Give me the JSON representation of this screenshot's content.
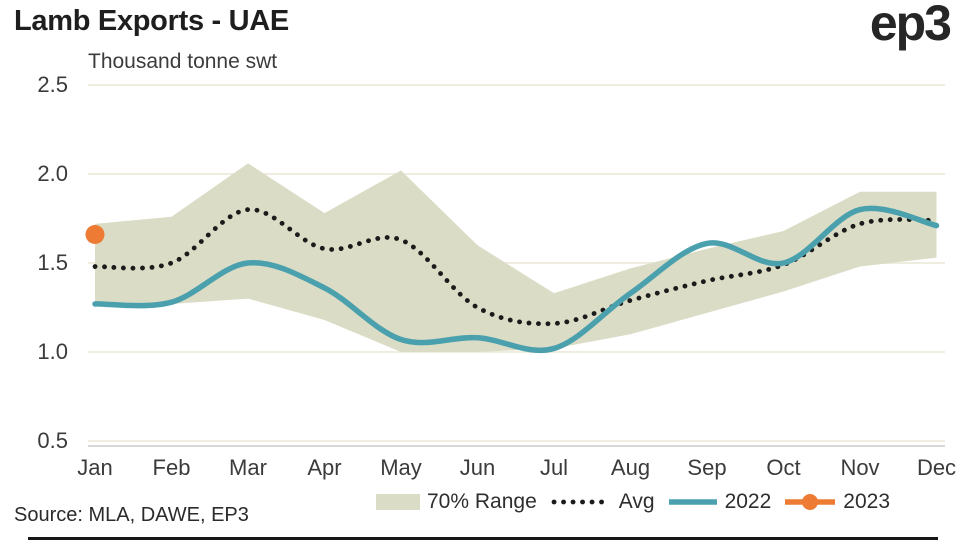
{
  "header": {
    "title": "Lamb Exports - UAE",
    "logo_text": "ep3"
  },
  "chart_data": {
    "type": "line",
    "title": "Lamb Exports - UAE",
    "ylabel": "Thousand tonne swt",
    "xlabel": "",
    "categories": [
      "Jan",
      "Feb",
      "Mar",
      "Apr",
      "May",
      "Jun",
      "Jul",
      "Aug",
      "Sep",
      "Oct",
      "Nov",
      "Dec"
    ],
    "y_ticks": [
      2.5,
      2.0,
      1.5,
      1.0,
      0.5
    ],
    "y_tick_labels": [
      "2.5",
      "2.0",
      "1.5",
      "1.0",
      "0.5"
    ],
    "ylim": [
      0.5,
      2.5
    ],
    "grid": "horizontal",
    "legend_position": "bottom",
    "series": [
      {
        "name": "70% Range",
        "type": "band",
        "low": [
          1.26,
          1.27,
          1.3,
          1.18,
          1.0,
          1.0,
          1.02,
          1.1,
          1.22,
          1.34,
          1.48,
          1.53
        ],
        "high": [
          1.72,
          1.76,
          2.06,
          1.78,
          2.02,
          1.6,
          1.33,
          1.47,
          1.58,
          1.68,
          1.9,
          1.9
        ]
      },
      {
        "name": "Avg",
        "type": "dotted_line",
        "values": [
          1.48,
          1.5,
          1.8,
          1.58,
          1.63,
          1.25,
          1.16,
          1.29,
          1.4,
          1.49,
          1.72,
          1.74
        ]
      },
      {
        "name": "2022",
        "type": "line",
        "values": [
          1.27,
          1.28,
          1.5,
          1.36,
          1.07,
          1.08,
          1.02,
          1.33,
          1.61,
          1.5,
          1.8,
          1.71
        ]
      },
      {
        "name": "2023",
        "type": "point",
        "values": [
          1.66
        ]
      }
    ]
  },
  "legend": {
    "items": [
      {
        "label": "70% Range"
      },
      {
        "label": "Avg"
      },
      {
        "label": "2022"
      },
      {
        "label": "2023"
      }
    ]
  },
  "footer": {
    "source": "Source: MLA, DAWE, EP3"
  },
  "colors": {
    "band": "#dbdcc6",
    "avg": "#1b1b1b",
    "line_2022": "#4aa0ad",
    "point_2023": "#ee7b33",
    "gridline": "#efece0",
    "axis_line": "#d8d8d8",
    "text": "#2e2e2e"
  }
}
